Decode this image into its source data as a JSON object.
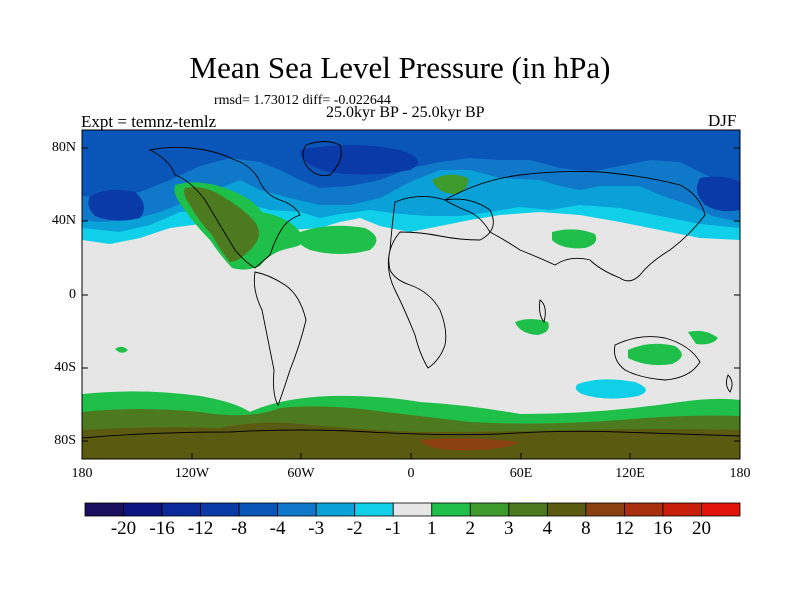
{
  "title": "Mean Sea Level Pressure (in hPa)",
  "stats": "rmsd= 1.73012 diff= -0.022644",
  "period": "25.0kyr BP - 25.0kyr BP",
  "experiment": "Expt = temnz-temlz",
  "season": "DJF",
  "axes": {
    "lat_ticks": [
      "80N",
      "40N",
      "0",
      "40S",
      "80S"
    ],
    "lon_ticks": [
      "180",
      "120W",
      "60W",
      "0",
      "60E",
      "120E",
      "180"
    ]
  },
  "colorbar": {
    "labels": [
      "-20",
      "-16",
      "-12",
      "-8",
      "-4",
      "-3",
      "-2",
      "-1",
      "1",
      "2",
      "3",
      "4",
      "8",
      "12",
      "16",
      "20"
    ],
    "colors": [
      "#1a0f5e",
      "#0d1580",
      "#0a2a9a",
      "#0a3aa8",
      "#0a55b8",
      "#0f78c8",
      "#0aa0d8",
      "#0fd0e8",
      "#e6e6e6",
      "#1fc04a",
      "#3f9a2e",
      "#4d7a1f",
      "#5a5a10",
      "#8a4010",
      "#a8300f",
      "#c81f0a",
      "#e0140a"
    ]
  },
  "map": {
    "ocean_color": "#e6e6e6",
    "coast_color": "#000000",
    "regions": [
      {
        "name": "northern-low-pressure-band",
        "category": "-3 to -8"
      },
      {
        "name": "north-america-positive-anomaly",
        "category": "2 to 8"
      },
      {
        "name": "southern-ocean-positive-anomaly",
        "category": "2 to 8"
      },
      {
        "name": "indian-ocean-negative-anomaly",
        "category": "-1 to -2"
      }
    ]
  }
}
